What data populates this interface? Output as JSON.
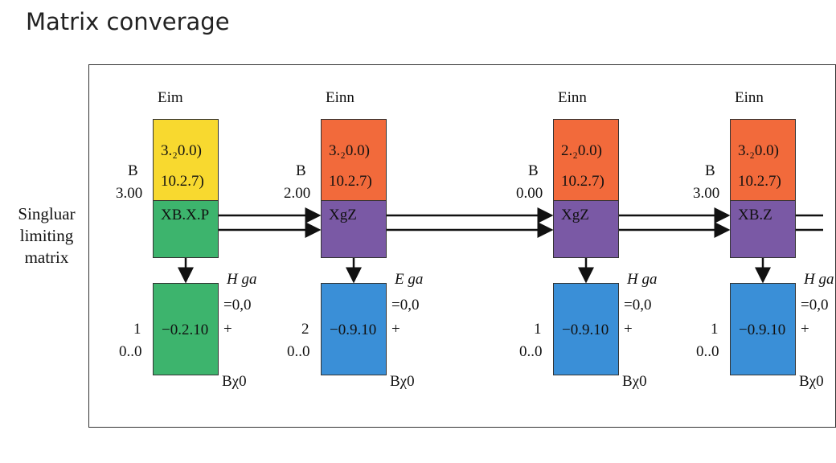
{
  "title": "Matrix converage",
  "side_label": [
    "Singluar",
    "limiting",
    "matrix"
  ],
  "colors": {
    "yellow": "#f8d92f",
    "green": "#3db46d",
    "orange": "#f26a3b",
    "purple": "#7a59a5",
    "blue": "#3a8fd7"
  },
  "columns": [
    {
      "header": "Eim",
      "left_top": "B",
      "left_value": "3.00",
      "top_line1": "3.₂0.0)",
      "top_line2": "10.2.7)",
      "top_color": "yellow",
      "mid_text": "XB.X.P",
      "mid_color": "green",
      "bottom_text": "−0.2.10",
      "bottom_color": "green",
      "bottom_left_top": "1",
      "bottom_left_value": "0..0",
      "right_label": "H ga",
      "right_eq": "=0,0",
      "right_plus": "+",
      "right_bottom": "Bχ0"
    },
    {
      "header": "Einn",
      "left_top": "B",
      "left_value": "2.00",
      "top_line1": "3.₂0.0)",
      "top_line2": "10.2.7)",
      "top_color": "orange",
      "mid_text": "XgZ",
      "mid_color": "purple",
      "bottom_text": "−0.9.10",
      "bottom_color": "blue",
      "bottom_left_top": "2",
      "bottom_left_value": "0..0",
      "right_label": "E ga",
      "right_eq": "=0,0",
      "right_plus": "+",
      "right_bottom": "Bχ0"
    },
    {
      "header": "Einn",
      "left_top": "B",
      "left_value": "0.00",
      "top_line1": "2.₂0.0)",
      "top_line2": "10.2.7)",
      "top_color": "orange",
      "mid_text": "XgZ",
      "mid_color": "purple",
      "bottom_text": "−0.9.10",
      "bottom_color": "blue",
      "bottom_left_top": "1",
      "bottom_left_value": "0..0",
      "right_label": "H ga",
      "right_eq": "=0,0",
      "right_plus": "+",
      "right_bottom": "Bχ0"
    },
    {
      "header": "Einn",
      "left_top": "B",
      "left_value": "3.00",
      "top_line1": "3.₂0.0)",
      "top_line2": "10.2.7)",
      "top_color": "orange",
      "mid_text": "XB.Z",
      "mid_color": "purple",
      "bottom_text": "−0.9.10",
      "bottom_color": "blue",
      "bottom_left_top": "1",
      "bottom_left_value": "0..0",
      "right_label": "H ga",
      "right_eq": "=0,0",
      "right_plus": "+",
      "right_bottom": "Bχ0"
    }
  ]
}
